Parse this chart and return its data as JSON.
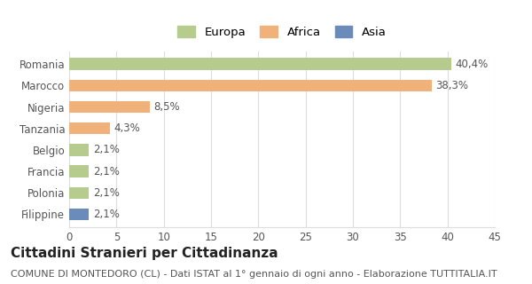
{
  "categories": [
    "Romania",
    "Marocco",
    "Nigeria",
    "Tanzania",
    "Belgio",
    "Francia",
    "Polonia",
    "Filippine"
  ],
  "values": [
    40.4,
    38.3,
    8.5,
    4.3,
    2.1,
    2.1,
    2.1,
    2.1
  ],
  "labels": [
    "40,4%",
    "38,3%",
    "8,5%",
    "4,3%",
    "2,1%",
    "2,1%",
    "2,1%",
    "2,1%"
  ],
  "colors": [
    "#b5cc8e",
    "#f0b27a",
    "#f0b27a",
    "#f0b27a",
    "#b5cc8e",
    "#b5cc8e",
    "#b5cc8e",
    "#6b8cba"
  ],
  "legend_labels": [
    "Europa",
    "Africa",
    "Asia"
  ],
  "legend_colors": [
    "#b5cc8e",
    "#f0b27a",
    "#6b8cba"
  ],
  "xlim": [
    0,
    45
  ],
  "xticks": [
    0,
    5,
    10,
    15,
    20,
    25,
    30,
    35,
    40,
    45
  ],
  "title": "Cittadini Stranieri per Cittadinanza",
  "subtitle": "COMUNE DI MONTEDORO (CL) - Dati ISTAT al 1° gennaio di ogni anno - Elaborazione TUTTITALIA.IT",
  "background_color": "#ffffff",
  "grid_color": "#dddddd",
  "bar_height": 0.55,
  "title_fontsize": 11,
  "subtitle_fontsize": 8,
  "label_fontsize": 8.5,
  "tick_fontsize": 8.5,
  "legend_fontsize": 9.5
}
